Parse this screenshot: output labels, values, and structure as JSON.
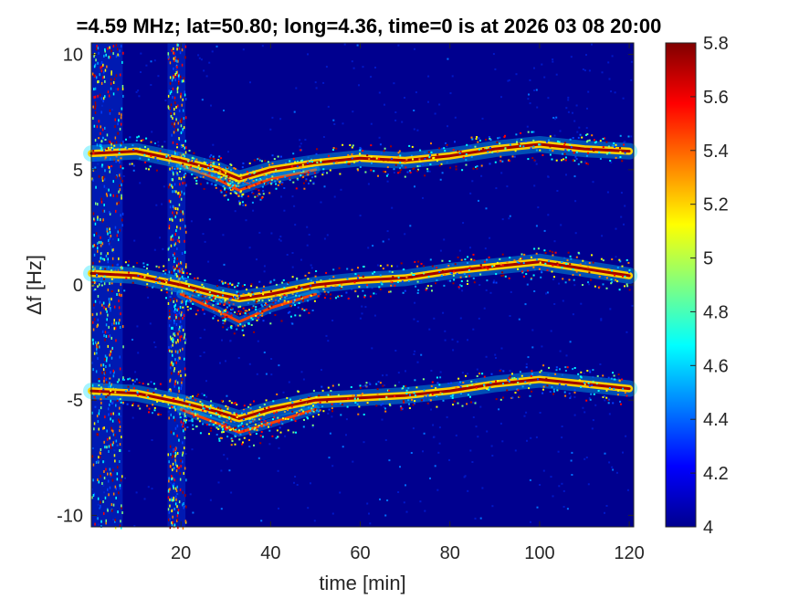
{
  "chart_data": {
    "type": "heatmap",
    "title": "=4.59 MHz;  lat=50.80; long=4.36, time=0 is at 2026 03 08 20:00",
    "xlabel": "time [min]",
    "ylabel": "Δf [Hz]",
    "xlim": [
      0,
      121
    ],
    "ylim": [
      -10.5,
      10.5
    ],
    "x_ticks": [
      20,
      40,
      60,
      80,
      100,
      120
    ],
    "y_ticks": [
      -10,
      -5,
      0,
      5,
      10
    ],
    "colormap": "jet",
    "color_range": [
      4,
      5.8
    ],
    "colorbar_ticks": [
      4,
      4.2,
      4.4,
      4.6,
      4.8,
      5,
      5.2,
      5.4,
      5.6,
      5.8
    ],
    "background_color": "#00008f",
    "traces": [
      {
        "name": "",
        "points": [
          [
            0,
            5.7
          ],
          [
            10,
            5.8
          ],
          [
            20,
            5.4
          ],
          [
            28,
            5.0
          ],
          [
            33,
            4.6
          ],
          [
            40,
            5.0
          ],
          [
            50,
            5.3
          ],
          [
            60,
            5.5
          ],
          [
            70,
            5.4
          ],
          [
            80,
            5.6
          ],
          [
            90,
            5.9
          ],
          [
            100,
            6.1
          ],
          [
            110,
            5.9
          ],
          [
            120,
            5.8
          ]
        ]
      },
      {
        "name": "",
        "points": [
          [
            0,
            0.5
          ],
          [
            10,
            0.4
          ],
          [
            20,
            0.0
          ],
          [
            28,
            -0.4
          ],
          [
            33,
            -0.6
          ],
          [
            40,
            -0.4
          ],
          [
            50,
            0.0
          ],
          [
            60,
            0.2
          ],
          [
            70,
            0.3
          ],
          [
            80,
            0.6
          ],
          [
            90,
            0.8
          ],
          [
            100,
            1.0
          ],
          [
            110,
            0.7
          ],
          [
            120,
            0.4
          ]
        ]
      },
      {
        "name": "",
        "points": [
          [
            0,
            -4.6
          ],
          [
            10,
            -4.7
          ],
          [
            20,
            -5.1
          ],
          [
            28,
            -5.5
          ],
          [
            33,
            -5.8
          ],
          [
            40,
            -5.4
          ],
          [
            50,
            -5.0
          ],
          [
            60,
            -4.9
          ],
          [
            70,
            -4.8
          ],
          [
            80,
            -4.6
          ],
          [
            90,
            -4.3
          ],
          [
            100,
            -4.1
          ],
          [
            110,
            -4.3
          ],
          [
            120,
            -4.5
          ]
        ]
      }
    ],
    "secondary_traces": [
      {
        "name": "",
        "points": [
          [
            20,
            5.2
          ],
          [
            28,
            4.6
          ],
          [
            33,
            4.1
          ],
          [
            40,
            4.6
          ],
          [
            50,
            5.0
          ]
        ]
      },
      {
        "name": "",
        "points": [
          [
            20,
            -0.4
          ],
          [
            28,
            -1.1
          ],
          [
            33,
            -1.6
          ],
          [
            40,
            -1.0
          ],
          [
            50,
            -0.4
          ]
        ]
      },
      {
        "name": "",
        "points": [
          [
            20,
            -5.4
          ],
          [
            28,
            -6.0
          ],
          [
            33,
            -6.4
          ],
          [
            40,
            -6.0
          ],
          [
            50,
            -5.4
          ]
        ]
      }
    ],
    "vertical_bands": [
      {
        "x_start": 0,
        "x_end": 7
      },
      {
        "x_start": 17,
        "x_end": 21
      }
    ]
  }
}
